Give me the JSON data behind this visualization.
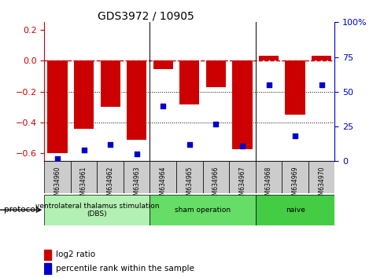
{
  "title": "GDS3972 / 10905",
  "samples": [
    "GSM634960",
    "GSM634961",
    "GSM634962",
    "GSM634963",
    "GSM634964",
    "GSM634965",
    "GSM634966",
    "GSM634967",
    "GSM634968",
    "GSM634969",
    "GSM634970"
  ],
  "log2_ratio": [
    -0.595,
    -0.44,
    -0.3,
    -0.51,
    -0.055,
    -0.28,
    -0.17,
    -0.57,
    0.035,
    -0.35,
    0.035
  ],
  "percentile_rank": [
    2,
    8,
    12,
    5,
    40,
    12,
    27,
    11,
    55,
    18,
    55
  ],
  "bar_color": "#cc0000",
  "dot_color": "#0000cc",
  "ylim_left": [
    -0.65,
    0.25
  ],
  "ylim_right": [
    0,
    100
  ],
  "yticks_left": [
    -0.6,
    -0.4,
    -0.2,
    0.0,
    0.2
  ],
  "yticks_right": [
    0,
    25,
    50,
    75,
    100
  ],
  "dotted_lines": [
    -0.2,
    -0.4
  ],
  "groups": [
    {
      "label": "ventrolateral thalamus stimulation\n(DBS)",
      "start": 0,
      "end": 3,
      "color": "#b3f0b3"
    },
    {
      "label": "sham operation",
      "start": 4,
      "end": 7,
      "color": "#66dd66"
    },
    {
      "label": "naive",
      "start": 8,
      "end": 10,
      "color": "#44cc44"
    }
  ],
  "protocol_label": "protocol",
  "sample_box_color": "#cccccc",
  "legend_red_label": "log2 ratio",
  "legend_blue_label": "percentile rank within the sample"
}
